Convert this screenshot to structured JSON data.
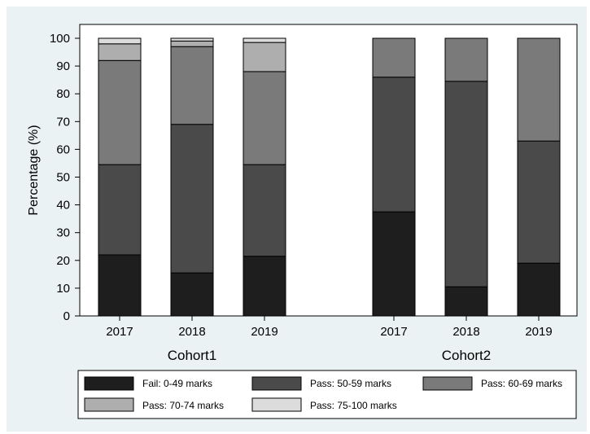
{
  "chart_data": {
    "type": "bar",
    "stacked": true,
    "ylabel": "Percentage (%)",
    "ylim": [
      0,
      100
    ],
    "yticks": [
      0,
      10,
      20,
      30,
      40,
      50,
      60,
      70,
      80,
      90,
      100
    ],
    "grid": false,
    "legend_position": "bottom",
    "groups": [
      {
        "name": "Cohort1",
        "categories": [
          "2017",
          "2018",
          "2019"
        ],
        "series": [
          {
            "name": "Fail: 0-49 marks",
            "color": "#1e1e1e",
            "values": [
              22,
              15.5,
              21.5
            ]
          },
          {
            "name": "Pass: 50-59 marks",
            "color": "#4a4a4a",
            "values": [
              32.5,
              53.5,
              33
            ]
          },
          {
            "name": "Pass: 60-69 marks",
            "color": "#7a7a7a",
            "values": [
              37.5,
              28,
              33.5
            ]
          },
          {
            "name": "Pass: 70-74 marks",
            "color": "#aeaeae",
            "values": [
              6,
              2,
              10.5
            ]
          },
          {
            "name": "Pass: 75-100 marks",
            "color": "#dcdcdc",
            "values": [
              2,
              1,
              1.5
            ]
          }
        ]
      },
      {
        "name": "Cohort2",
        "categories": [
          "2017",
          "2018",
          "2019"
        ],
        "series": [
          {
            "name": "Fail: 0-49 marks",
            "color": "#1e1e1e",
            "values": [
              37.5,
              10.5,
              19
            ]
          },
          {
            "name": "Pass: 50-59 marks",
            "color": "#4a4a4a",
            "values": [
              48.5,
              74,
              44
            ]
          },
          {
            "name": "Pass: 60-69 marks",
            "color": "#7a7a7a",
            "values": [
              14,
              15.5,
              37
            ]
          },
          {
            "name": "Pass: 70-74 marks",
            "color": "#aeaeae",
            "values": [
              0,
              0,
              0
            ]
          },
          {
            "name": "Pass: 75-100 marks",
            "color": "#dcdcdc",
            "values": [
              0,
              0,
              0
            ]
          }
        ]
      }
    ],
    "legend": [
      {
        "label": "Fail: 0-49 marks",
        "color": "#1e1e1e"
      },
      {
        "label": "Pass: 50-59 marks",
        "color": "#4a4a4a"
      },
      {
        "label": "Pass: 60-69 marks",
        "color": "#7a7a7a"
      },
      {
        "label": "Pass: 70-74 marks",
        "color": "#aeaeae"
      },
      {
        "label": "Pass: 75-100 marks",
        "color": "#dcdcdc"
      }
    ]
  }
}
